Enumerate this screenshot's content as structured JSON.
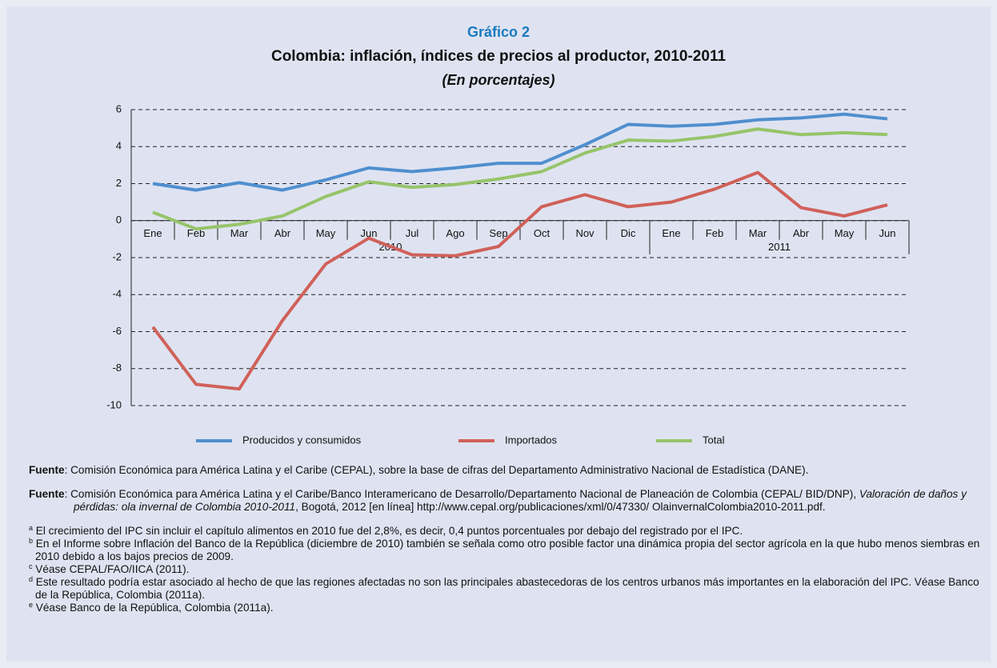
{
  "chart_data": {
    "type": "line",
    "label": "Gráfico 2",
    "title": "Colombia: inflación, índices de precios al productor, 2010-2011",
    "subtitle": "(En porcentajes)",
    "categories": [
      "Ene",
      "Feb",
      "Mar",
      "Abr",
      "May",
      "Jun",
      "Jul",
      "Ago",
      "Sep",
      "Oct",
      "Nov",
      "Dic",
      "Ene",
      "Feb",
      "Mar",
      "Abr",
      "May",
      "Jun"
    ],
    "year_groups": [
      {
        "label": "2010",
        "count": 12
      },
      {
        "label": "2011",
        "count": 6
      }
    ],
    "series": [
      {
        "name": "Producidos y consumidos",
        "color": "#4f8fcf",
        "values": [
          2.0,
          1.65,
          2.05,
          1.65,
          2.2,
          2.85,
          2.65,
          2.85,
          3.1,
          3.1,
          4.1,
          5.2,
          5.1,
          5.2,
          5.45,
          5.55,
          5.75,
          5.5
        ]
      },
      {
        "name": "Importados",
        "color": "#d0615a",
        "values": [
          -5.75,
          -8.85,
          -9.1,
          -5.4,
          -2.35,
          -0.95,
          -1.85,
          -1.9,
          -1.4,
          0.75,
          1.4,
          0.75,
          1.0,
          1.7,
          2.6,
          0.7,
          0.25,
          0.85
        ]
      },
      {
        "name": "Total",
        "color": "#97c46a",
        "values": [
          0.45,
          -0.45,
          -0.2,
          0.25,
          1.3,
          2.1,
          1.8,
          1.95,
          2.25,
          2.65,
          3.65,
          4.35,
          4.3,
          4.55,
          4.95,
          4.65,
          4.75,
          4.65
        ]
      }
    ],
    "ylim": [
      -10,
      6
    ],
    "yticks": [
      -10,
      -8,
      -6,
      -4,
      -2,
      0,
      2,
      4,
      6
    ],
    "grid": true,
    "legend": "bottom"
  },
  "sources": [
    {
      "label": "Fuente",
      "parts": [
        {
          "text": ":  Comisión Económica para América Latina y el Caribe (CEPAL), sobre la base de cifras del Departamento Administrativo Nacional de Estadística (DANE).",
          "italic": false
        }
      ]
    },
    {
      "label": "Fuente",
      "parts": [
        {
          "text": ": Comisión Económica para América Latina y el Caribe/Banco Interamericano de Desarrollo/Departamento Nacional de Planeación de Colombia (CEPAL/ BID/DNP), ",
          "italic": false
        },
        {
          "text": "Valoración de daños y pérdidas: ola invernal de Colombia 2010-2011",
          "italic": true
        },
        {
          "text": ", Bogotá, 2012 [en línea] http://www.cepal.org/publicaciones/xml/0/47330/ OlainvernalColombia2010-2011.pdf.",
          "italic": false
        }
      ]
    }
  ],
  "notes": [
    {
      "marker": "a",
      "text": "El crecimiento del IPC sin incluir el capítulo alimentos en 2010 fue del 2,8%, es decir, 0,4 puntos porcentuales por debajo del registrado por el IPC."
    },
    {
      "marker": "b",
      "text": "En el Informe sobre Inflación del Banco de la República (diciembre de 2010) también se señala como otro posible factor una dinámica propia del sector agrícola en la que hubo menos siembras en 2010 debido a los bajos precios de 2009."
    },
    {
      "marker": "c",
      "text": "Véase CEPAL/FAO/IICA (2011)."
    },
    {
      "marker": "d",
      "text": "Este resultado podría estar asociado al hecho de que las regiones afectadas no son las principales abastecedoras de los centros urbanos más importantes en la elaboración del IPC. Véase Banco de la República, Colombia (2011a)."
    },
    {
      "marker": "e",
      "text": "Véase Banco de la República, Colombia (2011a)."
    }
  ]
}
